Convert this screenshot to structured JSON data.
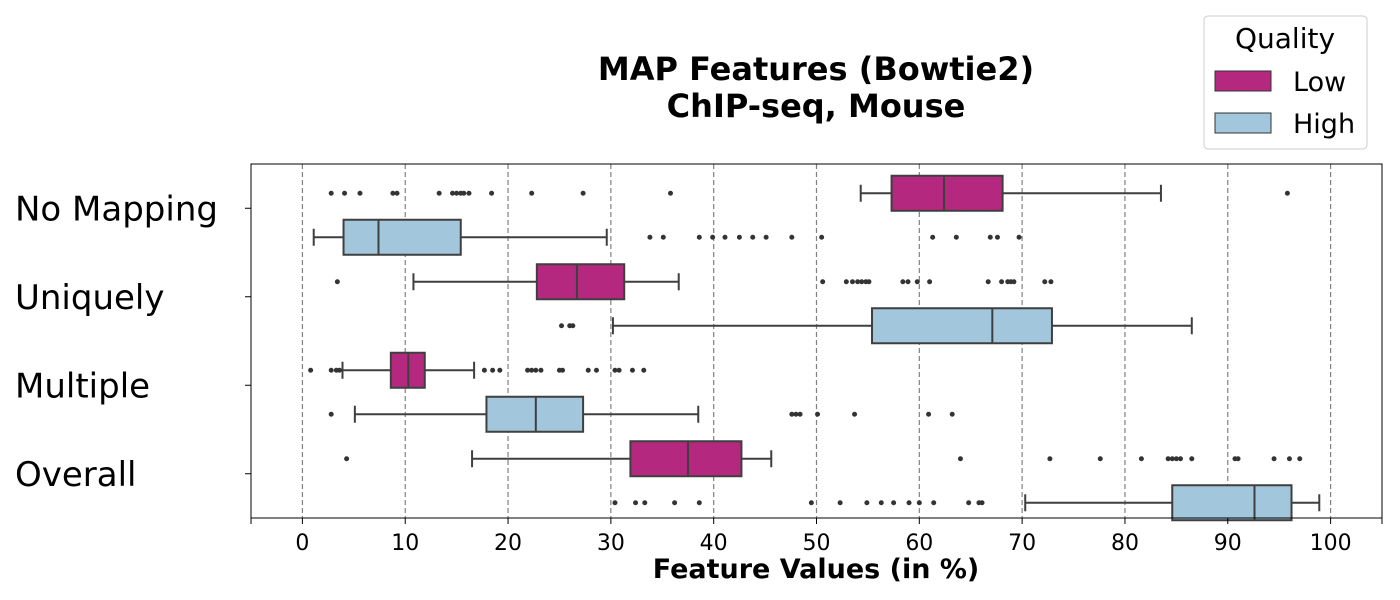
{
  "chart_data": {
    "type": "boxplot",
    "orientation": "horizontal",
    "title": [
      "MAP Features (Bowtie2)",
      "ChIP-seq, Mouse"
    ],
    "xlabel": "Feature Values (in %)",
    "ylabel": "",
    "xlim": [
      -5,
      105
    ],
    "xticks": [
      0,
      10,
      20,
      30,
      40,
      50,
      60,
      70,
      80,
      90,
      100
    ],
    "grid": "vertical-dashed",
    "legend": {
      "title": "Quality",
      "placement": "top-right"
    },
    "categories": [
      "No Mapping",
      "Uniquely",
      "Multiple",
      "Overall"
    ],
    "series": [
      {
        "name": "Low",
        "color": "#b5287f",
        "boxes": [
          {
            "category": "No Mapping",
            "whisker_low": 54.3,
            "q1": 57.3,
            "median": 62.4,
            "q3": 68.1,
            "whisker_high": 83.5,
            "outliers": [
              2.8,
              4.1,
              5.6,
              8.8,
              9.2,
              13.3,
              14.6,
              15.0,
              15.4,
              15.7,
              16.2,
              18.4,
              22.3,
              27.3,
              35.8,
              95.8
            ]
          },
          {
            "category": "Uniquely",
            "whisker_low": 10.8,
            "q1": 22.8,
            "median": 26.7,
            "q3": 31.3,
            "whisker_high": 36.6,
            "outliers": [
              3.4,
              50.6,
              52.9,
              53.5,
              54.0,
              54.4,
              54.8,
              55.1,
              58.4,
              58.9,
              59.8,
              61.0,
              66.7,
              68.0,
              68.6,
              68.9,
              69.2,
              72.2,
              72.8
            ]
          },
          {
            "category": "Multiple",
            "whisker_low": 3.9,
            "q1": 8.6,
            "median": 10.3,
            "q3": 11.9,
            "whisker_high": 16.7,
            "outliers": [
              0.8,
              2.8,
              3.3,
              3.6,
              17.7,
              18.5,
              19.2,
              21.9,
              22.3,
              22.7,
              23.2,
              25.0,
              25.3,
              27.8,
              28.6,
              30.4,
              30.8,
              32.1,
              33.2
            ]
          },
          {
            "category": "Overall",
            "whisker_low": 16.5,
            "q1": 31.9,
            "median": 37.5,
            "q3": 42.7,
            "whisker_high": 45.6,
            "outliers": [
              4.3,
              64.0,
              72.7,
              77.6,
              81.6,
              84.2,
              84.6,
              85.0,
              85.4,
              86.5,
              90.7,
              91.0,
              94.5,
              96.0,
              97.0
            ]
          }
        ]
      },
      {
        "name": "High",
        "color": "#a2c7dd",
        "boxes": [
          {
            "category": "No Mapping",
            "whisker_low": 1.1,
            "q1": 4.0,
            "median": 7.4,
            "q3": 15.4,
            "whisker_high": 29.6,
            "outliers": [
              33.8,
              35.1,
              38.6,
              39.9,
              41.1,
              42.5,
              43.8,
              45.1,
              47.6,
              50.5,
              61.3,
              63.6,
              66.9,
              67.6,
              69.7
            ]
          },
          {
            "category": "Uniquely",
            "whisker_low": 30.2,
            "q1": 55.4,
            "median": 67.1,
            "q3": 72.9,
            "whisker_high": 86.5,
            "outliers": [
              25.2,
              26.0,
              26.3
            ]
          },
          {
            "category": "Multiple",
            "whisker_low": 5.1,
            "q1": 17.9,
            "median": 22.7,
            "q3": 27.3,
            "whisker_high": 38.5,
            "outliers": [
              2.8,
              47.6,
              48.0,
              48.4,
              50.1,
              53.7,
              60.9,
              63.2
            ]
          },
          {
            "category": "Overall",
            "whisker_low": 70.3,
            "q1": 84.6,
            "median": 92.6,
            "q3": 96.2,
            "whisker_high": 98.9,
            "outliers": [
              30.4,
              32.4,
              33.3,
              36.2,
              38.6,
              49.5,
              52.3,
              54.9,
              56.3,
              57.5,
              59.0,
              60.0,
              61.4,
              64.8,
              65.8,
              66.1
            ]
          }
        ]
      }
    ]
  }
}
